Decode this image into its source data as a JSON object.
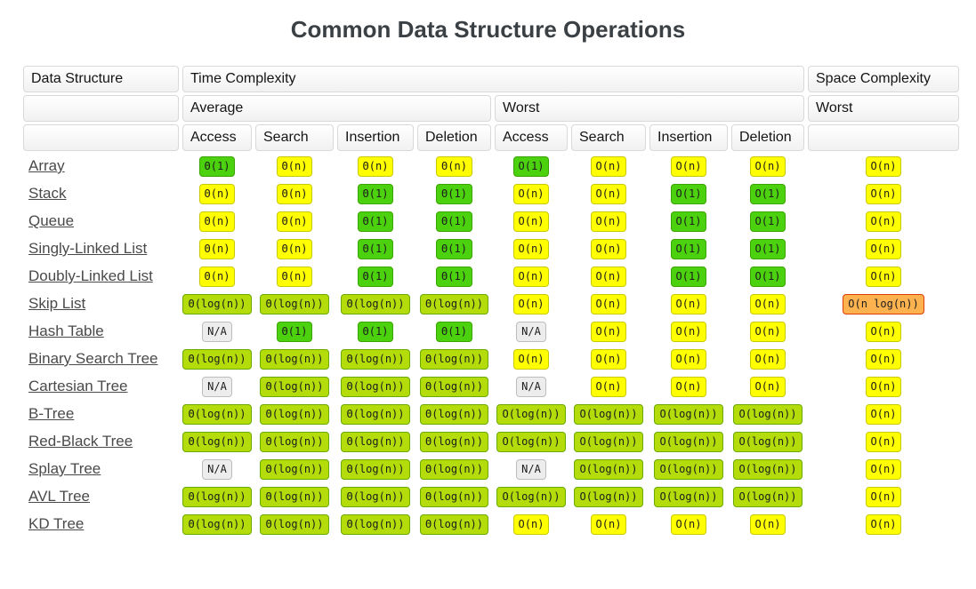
{
  "title": "Common Data Structure Operations",
  "header": {
    "data_structure": "Data Structure",
    "time_complexity": "Time Complexity",
    "space_complexity": "Space Complexity",
    "average": "Average",
    "worst": "Worst",
    "space_worst": "Worst",
    "operations": [
      "Access",
      "Search",
      "Insertion",
      "Deletion",
      "Access",
      "Search",
      "Insertion",
      "Deletion"
    ]
  },
  "colors": {
    "green": "#4cd10e",
    "yellow_green": "#b4dc0b",
    "yellow": "#ffff00",
    "orange": "#fcb34f",
    "gray": "#ededed",
    "title_text": "#3b4045",
    "link_text": "#4a4a4a"
  },
  "rows": [
    {
      "name": "Array",
      "cells": [
        {
          "t": "Θ(1)",
          "c": "green"
        },
        {
          "t": "Θ(n)",
          "c": "yellow"
        },
        {
          "t": "Θ(n)",
          "c": "yellow"
        },
        {
          "t": "Θ(n)",
          "c": "yellow"
        },
        {
          "t": "O(1)",
          "c": "green"
        },
        {
          "t": "O(n)",
          "c": "yellow"
        },
        {
          "t": "O(n)",
          "c": "yellow"
        },
        {
          "t": "O(n)",
          "c": "yellow"
        },
        {
          "t": "O(n)",
          "c": "yellow"
        }
      ]
    },
    {
      "name": "Stack",
      "cells": [
        {
          "t": "Θ(n)",
          "c": "yellow"
        },
        {
          "t": "Θ(n)",
          "c": "yellow"
        },
        {
          "t": "Θ(1)",
          "c": "green"
        },
        {
          "t": "Θ(1)",
          "c": "green"
        },
        {
          "t": "O(n)",
          "c": "yellow"
        },
        {
          "t": "O(n)",
          "c": "yellow"
        },
        {
          "t": "O(1)",
          "c": "green"
        },
        {
          "t": "O(1)",
          "c": "green"
        },
        {
          "t": "O(n)",
          "c": "yellow"
        }
      ]
    },
    {
      "name": "Queue",
      "cells": [
        {
          "t": "Θ(n)",
          "c": "yellow"
        },
        {
          "t": "Θ(n)",
          "c": "yellow"
        },
        {
          "t": "Θ(1)",
          "c": "green"
        },
        {
          "t": "Θ(1)",
          "c": "green"
        },
        {
          "t": "O(n)",
          "c": "yellow"
        },
        {
          "t": "O(n)",
          "c": "yellow"
        },
        {
          "t": "O(1)",
          "c": "green"
        },
        {
          "t": "O(1)",
          "c": "green"
        },
        {
          "t": "O(n)",
          "c": "yellow"
        }
      ]
    },
    {
      "name": "Singly-Linked List",
      "cells": [
        {
          "t": "Θ(n)",
          "c": "yellow"
        },
        {
          "t": "Θ(n)",
          "c": "yellow"
        },
        {
          "t": "Θ(1)",
          "c": "green"
        },
        {
          "t": "Θ(1)",
          "c": "green"
        },
        {
          "t": "O(n)",
          "c": "yellow"
        },
        {
          "t": "O(n)",
          "c": "yellow"
        },
        {
          "t": "O(1)",
          "c": "green"
        },
        {
          "t": "O(1)",
          "c": "green"
        },
        {
          "t": "O(n)",
          "c": "yellow"
        }
      ]
    },
    {
      "name": "Doubly-Linked List",
      "cells": [
        {
          "t": "Θ(n)",
          "c": "yellow"
        },
        {
          "t": "Θ(n)",
          "c": "yellow"
        },
        {
          "t": "Θ(1)",
          "c": "green"
        },
        {
          "t": "Θ(1)",
          "c": "green"
        },
        {
          "t": "O(n)",
          "c": "yellow"
        },
        {
          "t": "O(n)",
          "c": "yellow"
        },
        {
          "t": "O(1)",
          "c": "green"
        },
        {
          "t": "O(1)",
          "c": "green"
        },
        {
          "t": "O(n)",
          "c": "yellow"
        }
      ]
    },
    {
      "name": "Skip List",
      "cells": [
        {
          "t": "Θ(log(n))",
          "c": "yellowgreen"
        },
        {
          "t": "Θ(log(n))",
          "c": "yellowgreen"
        },
        {
          "t": "Θ(log(n))",
          "c": "yellowgreen"
        },
        {
          "t": "Θ(log(n))",
          "c": "yellowgreen"
        },
        {
          "t": "O(n)",
          "c": "yellow"
        },
        {
          "t": "O(n)",
          "c": "yellow"
        },
        {
          "t": "O(n)",
          "c": "yellow"
        },
        {
          "t": "O(n)",
          "c": "yellow"
        },
        {
          "t": "O(n log(n))",
          "c": "orange"
        }
      ]
    },
    {
      "name": "Hash Table",
      "cells": [
        {
          "t": "N/A",
          "c": "gray"
        },
        {
          "t": "Θ(1)",
          "c": "green"
        },
        {
          "t": "Θ(1)",
          "c": "green"
        },
        {
          "t": "Θ(1)",
          "c": "green"
        },
        {
          "t": "N/A",
          "c": "gray"
        },
        {
          "t": "O(n)",
          "c": "yellow"
        },
        {
          "t": "O(n)",
          "c": "yellow"
        },
        {
          "t": "O(n)",
          "c": "yellow"
        },
        {
          "t": "O(n)",
          "c": "yellow"
        }
      ]
    },
    {
      "name": "Binary Search Tree",
      "cells": [
        {
          "t": "Θ(log(n))",
          "c": "yellowgreen"
        },
        {
          "t": "Θ(log(n))",
          "c": "yellowgreen"
        },
        {
          "t": "Θ(log(n))",
          "c": "yellowgreen"
        },
        {
          "t": "Θ(log(n))",
          "c": "yellowgreen"
        },
        {
          "t": "O(n)",
          "c": "yellow"
        },
        {
          "t": "O(n)",
          "c": "yellow"
        },
        {
          "t": "O(n)",
          "c": "yellow"
        },
        {
          "t": "O(n)",
          "c": "yellow"
        },
        {
          "t": "O(n)",
          "c": "yellow"
        }
      ]
    },
    {
      "name": "Cartesian Tree",
      "cells": [
        {
          "t": "N/A",
          "c": "gray"
        },
        {
          "t": "Θ(log(n))",
          "c": "yellowgreen"
        },
        {
          "t": "Θ(log(n))",
          "c": "yellowgreen"
        },
        {
          "t": "Θ(log(n))",
          "c": "yellowgreen"
        },
        {
          "t": "N/A",
          "c": "gray"
        },
        {
          "t": "O(n)",
          "c": "yellow"
        },
        {
          "t": "O(n)",
          "c": "yellow"
        },
        {
          "t": "O(n)",
          "c": "yellow"
        },
        {
          "t": "O(n)",
          "c": "yellow"
        }
      ]
    },
    {
      "name": "B-Tree",
      "cells": [
        {
          "t": "Θ(log(n))",
          "c": "yellowgreen"
        },
        {
          "t": "Θ(log(n))",
          "c": "yellowgreen"
        },
        {
          "t": "Θ(log(n))",
          "c": "yellowgreen"
        },
        {
          "t": "Θ(log(n))",
          "c": "yellowgreen"
        },
        {
          "t": "O(log(n))",
          "c": "yellowgreen"
        },
        {
          "t": "O(log(n))",
          "c": "yellowgreen"
        },
        {
          "t": "O(log(n))",
          "c": "yellowgreen"
        },
        {
          "t": "O(log(n))",
          "c": "yellowgreen"
        },
        {
          "t": "O(n)",
          "c": "yellow"
        }
      ]
    },
    {
      "name": "Red-Black Tree",
      "cells": [
        {
          "t": "Θ(log(n))",
          "c": "yellowgreen"
        },
        {
          "t": "Θ(log(n))",
          "c": "yellowgreen"
        },
        {
          "t": "Θ(log(n))",
          "c": "yellowgreen"
        },
        {
          "t": "Θ(log(n))",
          "c": "yellowgreen"
        },
        {
          "t": "O(log(n))",
          "c": "yellowgreen"
        },
        {
          "t": "O(log(n))",
          "c": "yellowgreen"
        },
        {
          "t": "O(log(n))",
          "c": "yellowgreen"
        },
        {
          "t": "O(log(n))",
          "c": "yellowgreen"
        },
        {
          "t": "O(n)",
          "c": "yellow"
        }
      ]
    },
    {
      "name": "Splay Tree",
      "cells": [
        {
          "t": "N/A",
          "c": "gray"
        },
        {
          "t": "Θ(log(n))",
          "c": "yellowgreen"
        },
        {
          "t": "Θ(log(n))",
          "c": "yellowgreen"
        },
        {
          "t": "Θ(log(n))",
          "c": "yellowgreen"
        },
        {
          "t": "N/A",
          "c": "gray"
        },
        {
          "t": "O(log(n))",
          "c": "yellowgreen"
        },
        {
          "t": "O(log(n))",
          "c": "yellowgreen"
        },
        {
          "t": "O(log(n))",
          "c": "yellowgreen"
        },
        {
          "t": "O(n)",
          "c": "yellow"
        }
      ]
    },
    {
      "name": "AVL Tree",
      "cells": [
        {
          "t": "Θ(log(n))",
          "c": "yellowgreen"
        },
        {
          "t": "Θ(log(n))",
          "c": "yellowgreen"
        },
        {
          "t": "Θ(log(n))",
          "c": "yellowgreen"
        },
        {
          "t": "Θ(log(n))",
          "c": "yellowgreen"
        },
        {
          "t": "O(log(n))",
          "c": "yellowgreen"
        },
        {
          "t": "O(log(n))",
          "c": "yellowgreen"
        },
        {
          "t": "O(log(n))",
          "c": "yellowgreen"
        },
        {
          "t": "O(log(n))",
          "c": "yellowgreen"
        },
        {
          "t": "O(n)",
          "c": "yellow"
        }
      ]
    },
    {
      "name": "KD Tree",
      "cells": [
        {
          "t": "Θ(log(n))",
          "c": "yellowgreen"
        },
        {
          "t": "Θ(log(n))",
          "c": "yellowgreen"
        },
        {
          "t": "Θ(log(n))",
          "c": "yellowgreen"
        },
        {
          "t": "Θ(log(n))",
          "c": "yellowgreen"
        },
        {
          "t": "O(n)",
          "c": "yellow"
        },
        {
          "t": "O(n)",
          "c": "yellow"
        },
        {
          "t": "O(n)",
          "c": "yellow"
        },
        {
          "t": "O(n)",
          "c": "yellow"
        },
        {
          "t": "O(n)",
          "c": "yellow"
        }
      ]
    }
  ]
}
